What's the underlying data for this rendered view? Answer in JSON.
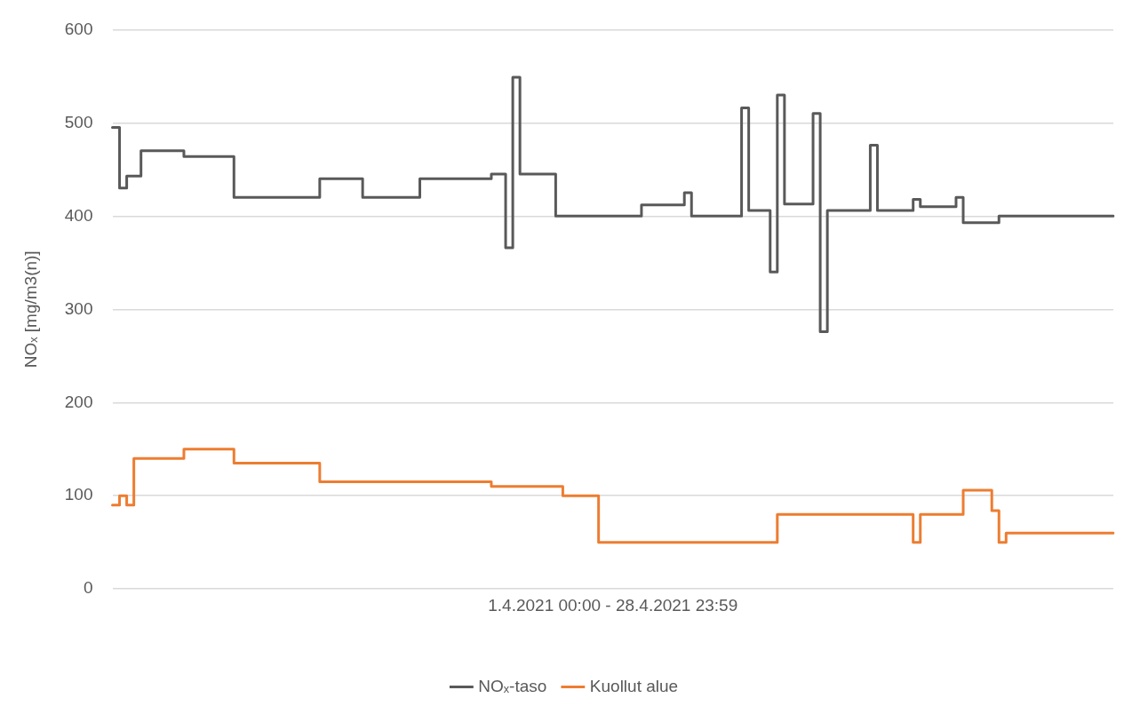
{
  "chart_data": {
    "type": "step",
    "xlabel": "1.4.2021 00:00 - 28.4.2021 23:59",
    "ylabel": "NOₓ [mg/m3(n)]",
    "categories": [
      null,
      null,
      null,
      null,
      null,
      null,
      null,
      null,
      null,
      null,
      null,
      null,
      null,
      null,
      null,
      null,
      null,
      null,
      null,
      null,
      null,
      null,
      null,
      null,
      null,
      null,
      null,
      null,
      null,
      null,
      null,
      null,
      null,
      null,
      null,
      null,
      null,
      null,
      null,
      null,
      null,
      null,
      null,
      null,
      null,
      null,
      null,
      null,
      null,
      null,
      null,
      null,
      null,
      null,
      null,
      null,
      null,
      null,
      null,
      null,
      null,
      null,
      null,
      null,
      null,
      null,
      null,
      null,
      null,
      null,
      null,
      null,
      null,
      null,
      null,
      null,
      null,
      null,
      null,
      null,
      null,
      null,
      null,
      null,
      null,
      null,
      null,
      null,
      null,
      null,
      null,
      null,
      null,
      null,
      null,
      null,
      null,
      null,
      null,
      null,
      null,
      null,
      null,
      null,
      null,
      null,
      null,
      null,
      null,
      null,
      null,
      null,
      null,
      null,
      null,
      null,
      null,
      null,
      null,
      null,
      null,
      null,
      null,
      null,
      null,
      null,
      null,
      null,
      null,
      null,
      null,
      null,
      null,
      null,
      null,
      null,
      null,
      null,
      null,
      null,
      null
    ],
    "ylim": [
      0,
      600
    ],
    "yticks": [
      0,
      100,
      200,
      300,
      400,
      500,
      600
    ],
    "grid": "y",
    "legend": "bottom",
    "tick_labels": "y",
    "marker": "none",
    "line_style": "solid",
    "series": [
      {
        "name": "NOₓ-taso",
        "color": "#595959",
        "values": [
          495,
          430,
          443,
          443,
          470,
          470,
          470,
          470,
          470,
          470,
          464,
          464,
          464,
          464,
          464,
          464,
          464,
          420,
          420,
          420,
          420,
          420,
          420,
          420,
          420,
          420,
          420,
          420,
          420,
          440,
          440,
          440,
          440,
          440,
          440,
          420,
          420,
          420,
          420,
          420,
          420,
          420,
          420,
          440,
          440,
          440,
          440,
          440,
          440,
          440,
          440,
          440,
          440,
          445,
          445,
          366,
          549,
          445,
          445,
          445,
          445,
          445,
          400,
          400,
          400,
          400,
          400,
          400,
          400,
          400,
          400,
          400,
          400,
          400,
          412,
          412,
          412,
          412,
          412,
          412,
          425,
          400,
          400,
          400,
          400,
          400,
          400,
          400,
          516,
          406,
          406,
          406,
          340,
          530,
          413,
          413,
          413,
          413,
          510,
          276,
          406,
          406,
          406,
          406,
          406,
          406,
          476,
          406,
          406,
          406,
          406,
          406,
          418,
          410,
          410,
          410,
          410,
          410,
          420,
          393,
          393,
          393,
          393,
          393,
          400,
          400,
          400,
          400,
          400,
          400,
          400,
          400,
          400,
          400,
          400,
          400,
          400,
          400,
          400,
          400,
          400
        ]
      },
      {
        "name": "Kuollut alue",
        "color": "#ed7d31",
        "values": [
          90,
          100,
          90,
          140,
          140,
          140,
          140,
          140,
          140,
          140,
          150,
          150,
          150,
          150,
          150,
          150,
          150,
          135,
          135,
          135,
          135,
          135,
          135,
          135,
          135,
          135,
          135,
          135,
          135,
          115,
          115,
          115,
          115,
          115,
          115,
          115,
          115,
          115,
          115,
          115,
          115,
          115,
          115,
          115,
          115,
          115,
          115,
          115,
          115,
          115,
          115,
          115,
          115,
          110,
          110,
          110,
          110,
          110,
          110,
          110,
          110,
          110,
          110,
          100,
          100,
          100,
          100,
          100,
          50,
          50,
          50,
          50,
          50,
          50,
          50,
          50,
          50,
          50,
          50,
          50,
          50,
          50,
          50,
          50,
          50,
          50,
          50,
          50,
          50,
          50,
          50,
          50,
          50,
          80,
          80,
          80,
          80,
          80,
          80,
          80,
          80,
          80,
          80,
          80,
          80,
          80,
          80,
          80,
          80,
          80,
          80,
          80,
          50,
          80,
          80,
          80,
          80,
          80,
          80,
          106,
          106,
          106,
          106,
          84,
          50,
          60,
          60,
          60,
          60,
          60,
          60,
          60,
          60,
          60,
          60,
          60,
          60,
          60,
          60,
          60,
          60
        ]
      }
    ]
  }
}
